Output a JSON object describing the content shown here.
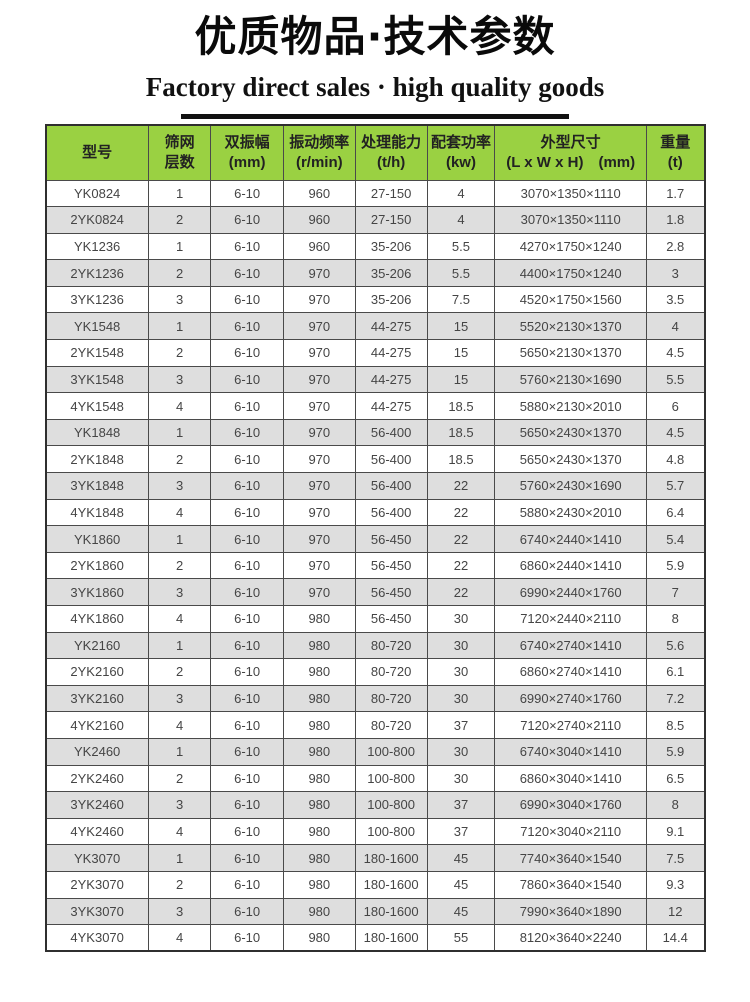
{
  "header": {
    "title": "优质物品·技术参数",
    "subtitle": "Factory direct sales · high quality goods"
  },
  "colors": {
    "header_bg": "#9ad142",
    "alt_row_bg": "#dedede",
    "border": "#4a4a4a",
    "title_text": "#0a0a0a",
    "cell_text": "#454545"
  },
  "table": {
    "columns": [
      {
        "key": "model",
        "line1": "型号",
        "line2": ""
      },
      {
        "key": "screen-layers",
        "line1": "筛网",
        "line2": "层数"
      },
      {
        "key": "amplitude",
        "line1": "双振幅",
        "line2": "(mm)"
      },
      {
        "key": "frequency",
        "line1": "振动频率",
        "line2": "(r/min)"
      },
      {
        "key": "capacity",
        "line1": "处理能力",
        "line2": "(t/h)"
      },
      {
        "key": "power",
        "line1": "配套功率",
        "line2": "(kw)"
      },
      {
        "key": "dimensions",
        "line1": "外型尺寸",
        "line2": "(L x W x H)　(mm)"
      },
      {
        "key": "weight",
        "line1": "重量",
        "line2": "(t)"
      }
    ],
    "rows": [
      [
        "YK0824",
        "1",
        "6-10",
        "960",
        "27-150",
        "4",
        "3070×1350×1110",
        "1.7"
      ],
      [
        "2YK0824",
        "2",
        "6-10",
        "960",
        "27-150",
        "4",
        "3070×1350×1110",
        "1.8"
      ],
      [
        "YK1236",
        "1",
        "6-10",
        "960",
        "35-206",
        "5.5",
        "4270×1750×1240",
        "2.8"
      ],
      [
        "2YK1236",
        "2",
        "6-10",
        "970",
        "35-206",
        "5.5",
        "4400×1750×1240",
        "3"
      ],
      [
        "3YK1236",
        "3",
        "6-10",
        "970",
        "35-206",
        "7.5",
        "4520×1750×1560",
        "3.5"
      ],
      [
        "YK1548",
        "1",
        "6-10",
        "970",
        "44-275",
        "15",
        "5520×2130×1370",
        "4"
      ],
      [
        "2YK1548",
        "2",
        "6-10",
        "970",
        "44-275",
        "15",
        "5650×2130×1370",
        "4.5"
      ],
      [
        "3YK1548",
        "3",
        "6-10",
        "970",
        "44-275",
        "15",
        "5760×2130×1690",
        "5.5"
      ],
      [
        "4YK1548",
        "4",
        "6-10",
        "970",
        "44-275",
        "18.5",
        "5880×2130×2010",
        "6"
      ],
      [
        "YK1848",
        "1",
        "6-10",
        "970",
        "56-400",
        "18.5",
        "5650×2430×1370",
        "4.5"
      ],
      [
        "2YK1848",
        "2",
        "6-10",
        "970",
        "56-400",
        "18.5",
        "5650×2430×1370",
        "4.8"
      ],
      [
        "3YK1848",
        "3",
        "6-10",
        "970",
        "56-400",
        "22",
        "5760×2430×1690",
        "5.7"
      ],
      [
        "4YK1848",
        "4",
        "6-10",
        "970",
        "56-400",
        "22",
        "5880×2430×2010",
        "6.4"
      ],
      [
        "YK1860",
        "1",
        "6-10",
        "970",
        "56-450",
        "22",
        "6740×2440×1410",
        "5.4"
      ],
      [
        "2YK1860",
        "2",
        "6-10",
        "970",
        "56-450",
        "22",
        "6860×2440×1410",
        "5.9"
      ],
      [
        "3YK1860",
        "3",
        "6-10",
        "970",
        "56-450",
        "22",
        "6990×2440×1760",
        "7"
      ],
      [
        "4YK1860",
        "4",
        "6-10",
        "980",
        "56-450",
        "30",
        "7120×2440×2110",
        "8"
      ],
      [
        "YK2160",
        "1",
        "6-10",
        "980",
        "80-720",
        "30",
        "6740×2740×1410",
        "5.6"
      ],
      [
        "2YK2160",
        "2",
        "6-10",
        "980",
        "80-720",
        "30",
        "6860×2740×1410",
        "6.1"
      ],
      [
        "3YK2160",
        "3",
        "6-10",
        "980",
        "80-720",
        "30",
        "6990×2740×1760",
        "7.2"
      ],
      [
        "4YK2160",
        "4",
        "6-10",
        "980",
        "80-720",
        "37",
        "7120×2740×2110",
        "8.5"
      ],
      [
        "YK2460",
        "1",
        "6-10",
        "980",
        "100-800",
        "30",
        "6740×3040×1410",
        "5.9"
      ],
      [
        "2YK2460",
        "2",
        "6-10",
        "980",
        "100-800",
        "30",
        "6860×3040×1410",
        "6.5"
      ],
      [
        "3YK2460",
        "3",
        "6-10",
        "980",
        "100-800",
        "37",
        "6990×3040×1760",
        "8"
      ],
      [
        "4YK2460",
        "4",
        "6-10",
        "980",
        "100-800",
        "37",
        "7120×3040×2110",
        "9.1"
      ],
      [
        "YK3070",
        "1",
        "6-10",
        "980",
        "180-1600",
        "45",
        "7740×3640×1540",
        "7.5"
      ],
      [
        "2YK3070",
        "2",
        "6-10",
        "980",
        "180-1600",
        "45",
        "7860×3640×1540",
        "9.3"
      ],
      [
        "3YK3070",
        "3",
        "6-10",
        "980",
        "180-1600",
        "45",
        "7990×3640×1890",
        "12"
      ],
      [
        "4YK3070",
        "4",
        "6-10",
        "980",
        "180-1600",
        "55",
        "8120×3640×2240",
        "14.4"
      ]
    ]
  }
}
